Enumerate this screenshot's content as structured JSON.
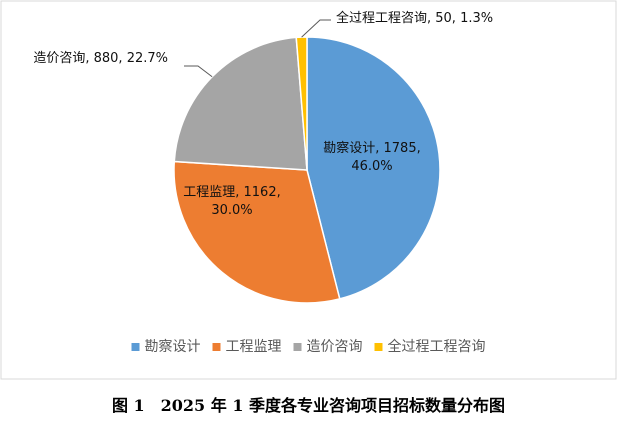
{
  "chart_data": {
    "type": "pie",
    "categories": [
      "勘察设计",
      "工程监理",
      "造价咨询",
      "全过程工程咨询"
    ],
    "values": [
      1785,
      1162,
      880,
      50
    ],
    "percents": [
      "46.0%",
      "30.0%",
      "22.7%",
      "1.3%"
    ],
    "colors": [
      "#5B9BD5",
      "#ED7D31",
      "#A5A5A5",
      "#FFC000"
    ],
    "data_labels": [
      [
        "勘察设计, 1785,",
        "46.0%"
      ],
      [
        "工程监理, 1162,",
        "30.0%"
      ],
      [
        "造价咨询, 880, 22.7%"
      ],
      [
        "全过程工程咨询, 50, 1.3%"
      ]
    ],
    "legend_position": "bottom",
    "title": ""
  },
  "caption": "图 1　2025 年 1 季度各专业咨询项目招标数量分布图"
}
